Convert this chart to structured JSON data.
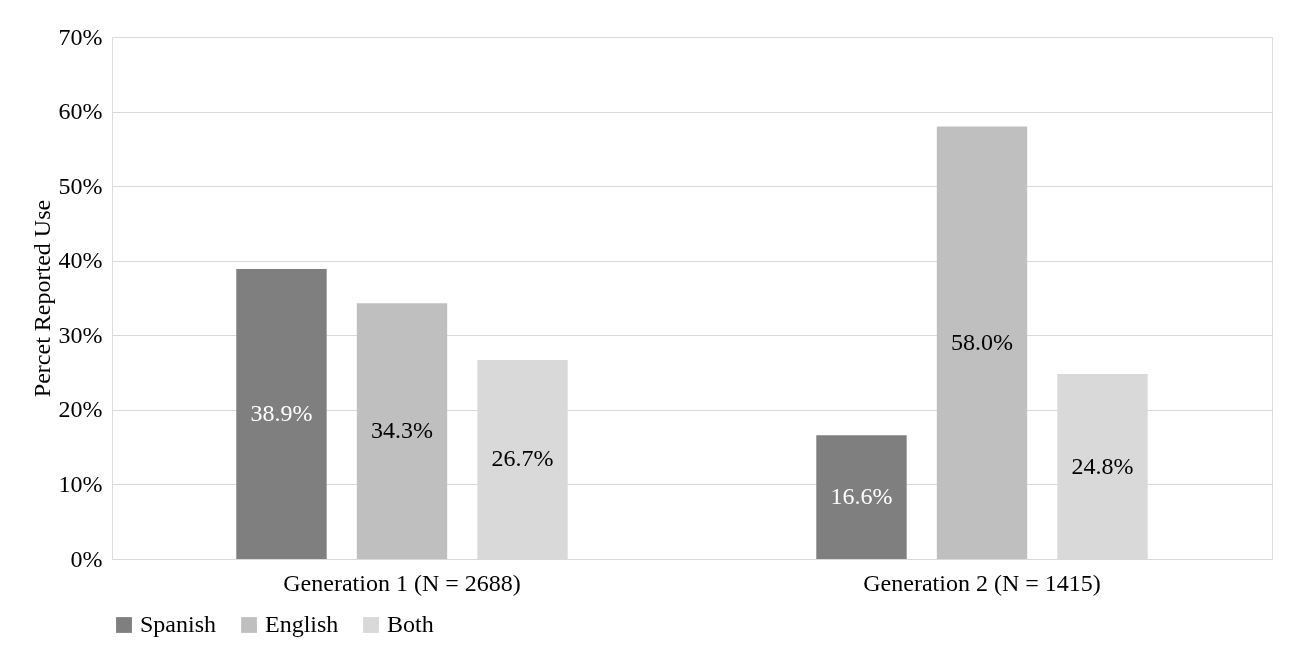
{
  "chart_data": {
    "type": "bar",
    "ylabel": "Percet Reported Use",
    "categories": [
      "Generation 1 (N = 2688)",
      "Generation 2 (N = 1415)"
    ],
    "series": [
      {
        "name": "Spanish",
        "color": "#7f7f7f",
        "values": [
          38.9,
          16.6
        ],
        "value_labels": [
          "38.9%",
          "16.6%"
        ]
      },
      {
        "name": "English",
        "color": "#bfbfbf",
        "values": [
          34.3,
          58.0
        ],
        "value_labels": [
          "34.3%",
          "58.0%"
        ]
      },
      {
        "name": "Both",
        "color": "#d9d9d9",
        "values": [
          26.7,
          24.8
        ],
        "value_labels": [
          "26.7%",
          "24.8%"
        ]
      }
    ],
    "ylim": [
      0,
      70
    ],
    "yticks": [
      {
        "value": 0,
        "label": "0%"
      },
      {
        "value": 10,
        "label": "10%"
      },
      {
        "value": 20,
        "label": "20%"
      },
      {
        "value": 30,
        "label": "30%"
      },
      {
        "value": 40,
        "label": "40%"
      },
      {
        "value": 50,
        "label": "50%"
      },
      {
        "value": 60,
        "label": "60%"
      },
      {
        "value": 70,
        "label": "70%"
      }
    ],
    "grid": "y",
    "legend": "bottom"
  }
}
